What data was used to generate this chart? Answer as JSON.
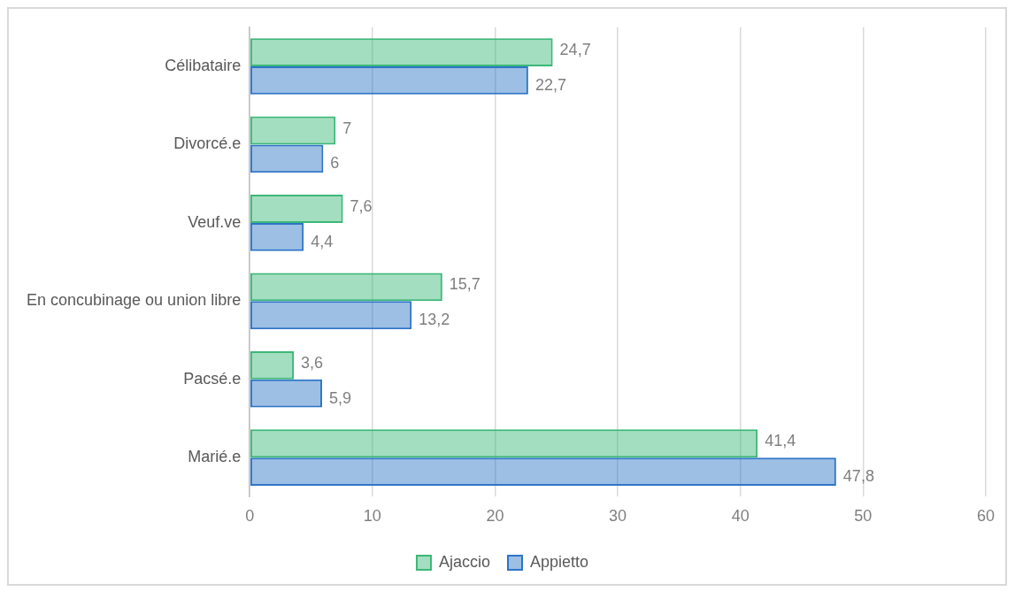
{
  "chart_data": {
    "type": "bar",
    "orientation": "horizontal",
    "categories": [
      "Célibataire",
      "Divorcé.e",
      "Veuf.ve",
      "En concubinage ou union libre",
      "Pacsé.e",
      "Marié.e"
    ],
    "series": [
      {
        "name": "Ajaccio",
        "color": "#3cb878",
        "values": [
          24.7,
          7,
          7.6,
          15.7,
          3.6,
          41.4
        ],
        "value_labels": [
          "24,7",
          "7",
          "7,6",
          "15,7",
          "3,6",
          "41,4"
        ]
      },
      {
        "name": "Appietto",
        "color": "#2e75c6",
        "values": [
          22.7,
          6,
          4.4,
          13.2,
          5.9,
          47.8
        ],
        "value_labels": [
          "22,7",
          "6",
          "4,4",
          "13,2",
          "5,9",
          "47,8"
        ]
      }
    ],
    "xlim": [
      0,
      60
    ],
    "xticks": [
      0,
      10,
      20,
      30,
      40,
      50,
      60
    ],
    "grid": "x",
    "legend": "bottom"
  }
}
